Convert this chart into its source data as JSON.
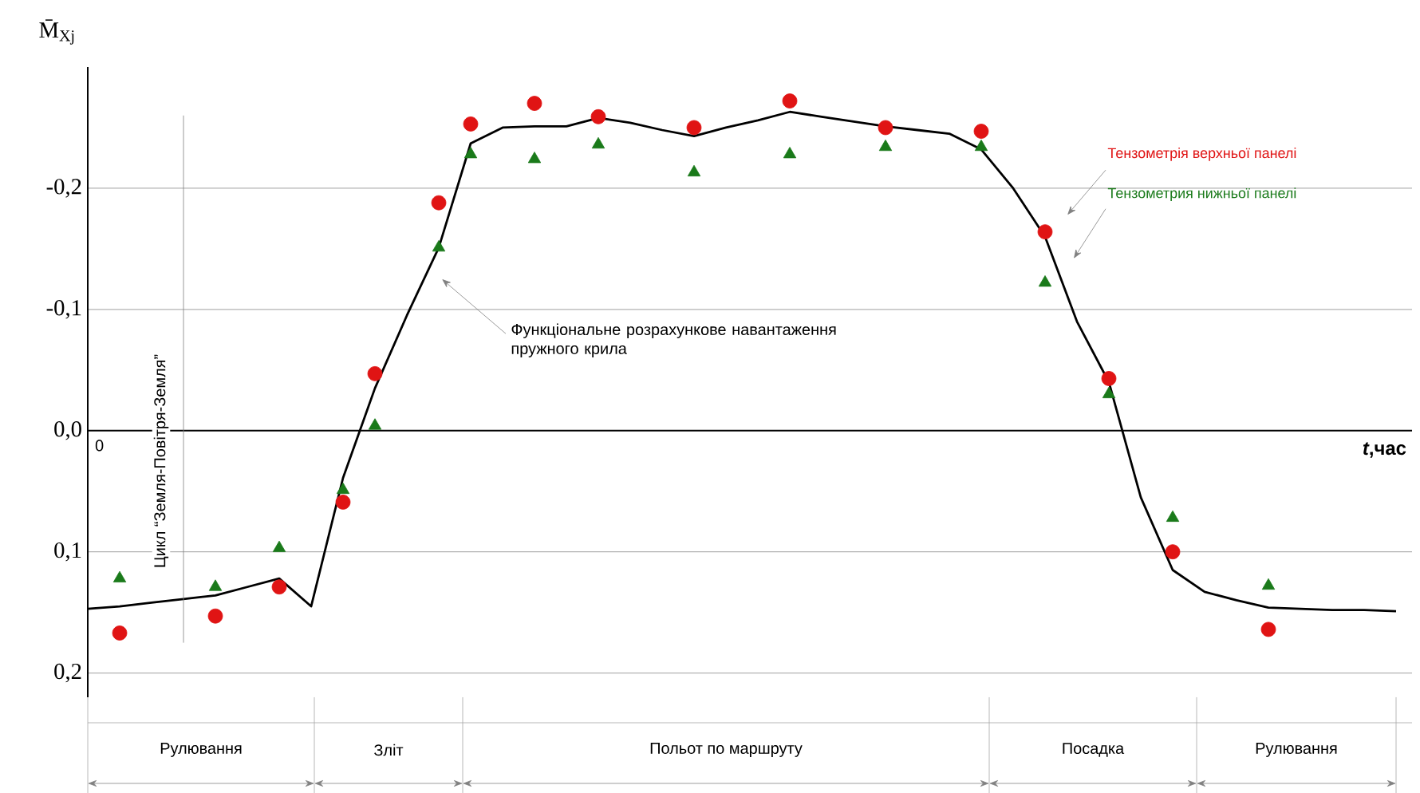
{
  "chart_data": {
    "type": "line",
    "ylabel": "M̄$_{Xj}$",
    "xlabel": "*t*,час",
    "categories": [
      null,
      null,
      null,
      null,
      null,
      null,
      null,
      null,
      null,
      null,
      null,
      null,
      null,
      null,
      null,
      null,
      null,
      null,
      null,
      null,
      null,
      null,
      null,
      null,
      null,
      null,
      null,
      null,
      null,
      null,
      null,
      null,
      null,
      null,
      null,
      null,
      null,
      null,
      null,
      null,
      null,
      null
    ],
    "series": [
      {
        "name": "Функціональне розрахункове навантаження пружного крила",
        "color": "#000000",
        "marker": "none",
        "values": [
          0.147,
          0.145,
          0.142,
          0.139,
          0.136,
          0.129,
          0.122,
          0.145,
          0.039,
          -0.035,
          -0.095,
          -0.151,
          -0.237,
          -0.25,
          -0.251,
          -0.251,
          -0.258,
          -0.254,
          -0.248,
          -0.243,
          -0.25,
          -0.256,
          -0.263,
          -0.259,
          -0.255,
          -0.251,
          -0.248,
          -0.245,
          -0.232,
          -0.2,
          -0.16,
          -0.09,
          -0.04,
          0.055,
          0.115,
          0.133,
          0.14,
          0.146,
          0.147,
          0.148,
          0.148,
          0.149
        ]
      },
      {
        "name": "Тензометрія верхньої панелі",
        "type": "scatter",
        "color": "#e01414",
        "marker": "circle",
        "values": [
          null,
          0.167,
          null,
          null,
          0.153,
          null,
          0.129,
          null,
          0.059,
          -0.047,
          null,
          -0.188,
          -0.253,
          null,
          -0.27,
          null,
          -0.259,
          null,
          null,
          -0.25,
          null,
          null,
          -0.272,
          null,
          null,
          -0.25,
          null,
          null,
          -0.247,
          null,
          -0.164,
          null,
          -0.043,
          null,
          0.1,
          null,
          null,
          0.164,
          null,
          null,
          null,
          null
        ]
      },
      {
        "name": "Тензометрия нижньої панелі",
        "type": "scatter",
        "color": "#1a7a1a",
        "marker": "triangle",
        "values": [
          null,
          0.122,
          null,
          null,
          0.129,
          null,
          0.097,
          null,
          0.049,
          -0.004,
          null,
          -0.151,
          -0.228,
          null,
          -0.224,
          null,
          -0.236,
          null,
          null,
          -0.213,
          null,
          null,
          -0.228,
          null,
          null,
          -0.234,
          null,
          null,
          -0.234,
          null,
          -0.122,
          null,
          -0.03,
          null,
          0.072,
          null,
          null,
          0.128,
          null,
          null,
          null,
          null
        ]
      }
    ],
    "ylim": [
      0.22,
      -0.3
    ],
    "yticks": [
      {
        "value": -0.2,
        "label": "-0,2"
      },
      {
        "value": -0.1,
        "label": "-0,1"
      },
      {
        "value": 0,
        "label": "0,0"
      },
      {
        "value": 0.1,
        "label": "0,1"
      },
      {
        "value": 0.2,
        "label": "0,2"
      }
    ],
    "grid": "y",
    "annotations": [
      "Цикл “Земля-Повітря-Земля”",
      "0",
      "Рулювання",
      "Зліт",
      "Польот по маршруту",
      "Посадка",
      "Рулювання"
    ]
  }
}
